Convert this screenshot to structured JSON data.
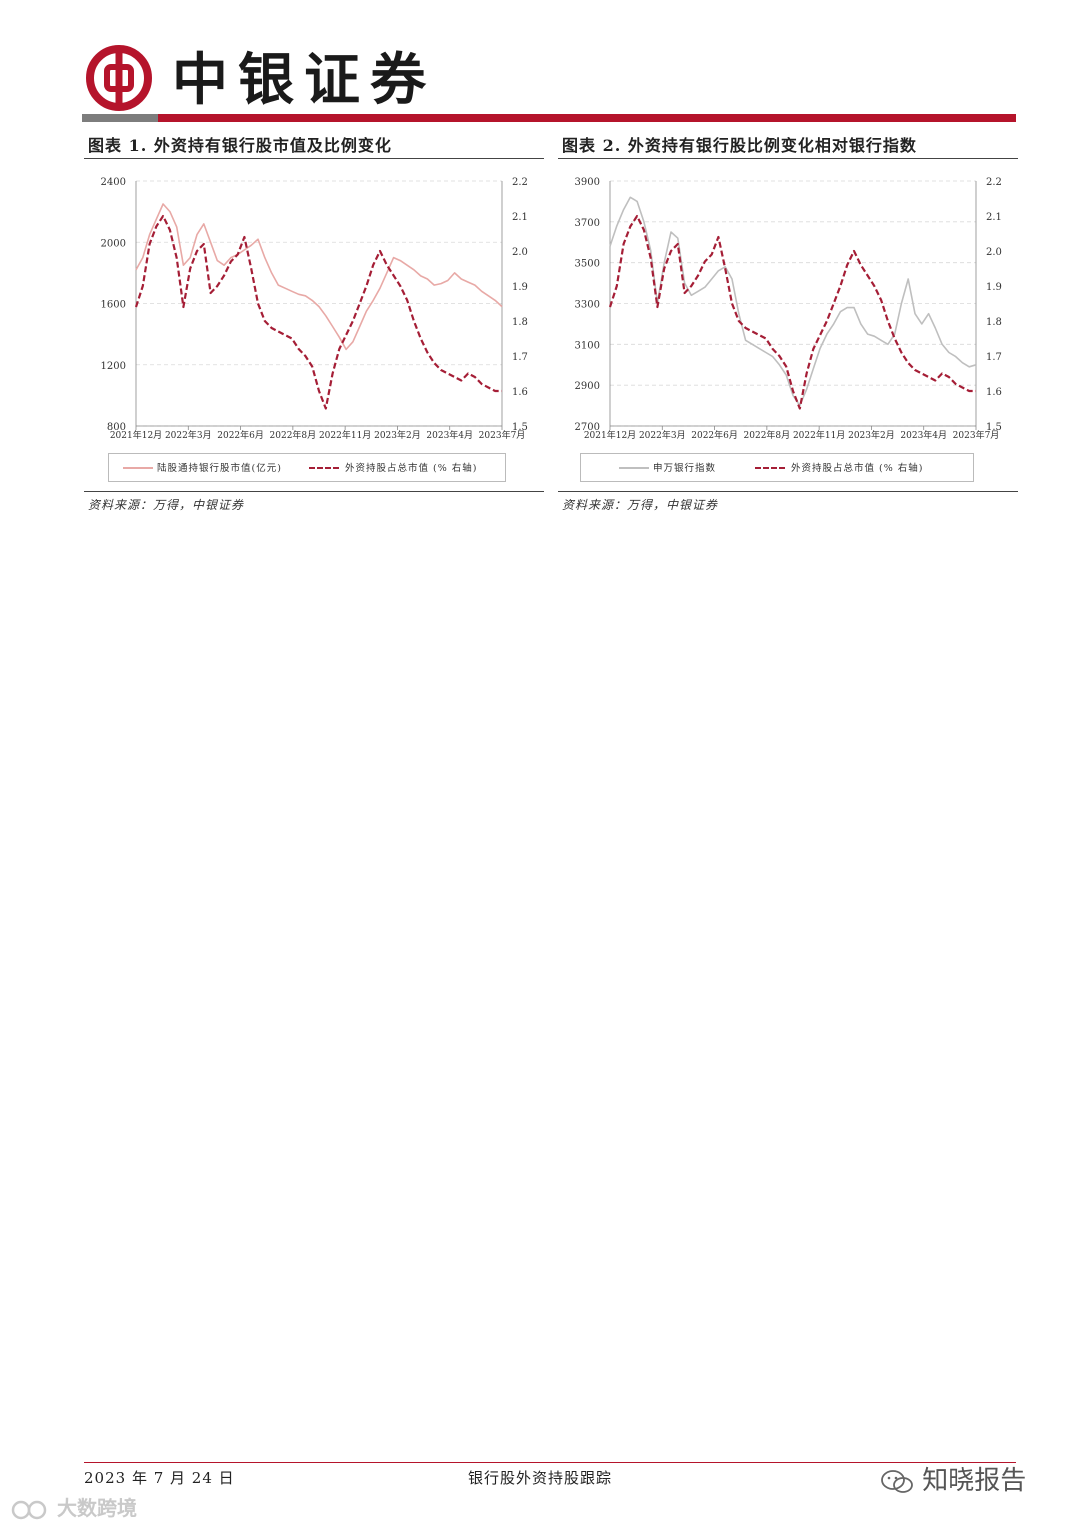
{
  "header": {
    "brand": "中银证券",
    "colors": {
      "brand_red": "#b5142b",
      "gray_bar": "#7d7d7d"
    }
  },
  "charts": {
    "left": {
      "title": "图表 1. 外资持有银行股市值及比例变化",
      "source": "资料来源：万得，中银证券",
      "legend": [
        "陆股通持银行股市值(亿元)",
        "外资持股占总市值    (% 右轴)"
      ]
    },
    "right": {
      "title": "图表 2. 外资持有银行股比例变化相对银行指数",
      "source": "资料来源：万得，中银证券",
      "legend": [
        "申万银行指数",
        "外资持股占总市值    (% 右轴)"
      ]
    }
  },
  "chart_data": [
    {
      "type": "line",
      "title": "外资持有银行股市值及比例变化",
      "x_ticks": [
        "2021年12月",
        "2022年3月",
        "2022年6月",
        "2022年8月",
        "2022年11月",
        "2023年2月",
        "2023年4月",
        "2023年7月"
      ],
      "y_left": {
        "ylim": [
          800,
          2400
        ],
        "ticks": [
          800,
          1200,
          1600,
          2000,
          2400
        ]
      },
      "y_right": {
        "ylim": [
          1.5,
          2.2
        ],
        "ticks": [
          1.5,
          1.6,
          1.7,
          1.8,
          1.9,
          2.0,
          2.1,
          2.2
        ]
      },
      "series": [
        {
          "name": "陆股通持银行股市值(亿元)",
          "axis": "left",
          "color": "#e8a9a6",
          "values": [
            1820,
            1900,
            2050,
            2150,
            2250,
            2200,
            2100,
            1850,
            1900,
            2050,
            2120,
            2000,
            1880,
            1850,
            1900,
            1920,
            1950,
            1980,
            2020,
            1900,
            1800,
            1720,
            1700,
            1680,
            1660,
            1650,
            1620,
            1580,
            1520,
            1450,
            1380,
            1300,
            1350,
            1450,
            1550,
            1620,
            1700,
            1800,
            1900,
            1880,
            1850,
            1820,
            1780,
            1760,
            1720,
            1730,
            1750,
            1800,
            1760,
            1740,
            1720,
            1680,
            1650,
            1620,
            1580
          ]
        },
        {
          "name": "外资持股占总市值",
          "axis": "right",
          "color": "#a51e36",
          "values": [
            1.84,
            1.9,
            2.02,
            2.07,
            2.1,
            2.06,
            1.98,
            1.84,
            1.95,
            2.0,
            2.02,
            1.88,
            1.9,
            1.93,
            1.97,
            1.99,
            2.04,
            1.95,
            1.85,
            1.8,
            1.78,
            1.77,
            1.76,
            1.75,
            1.72,
            1.7,
            1.67,
            1.6,
            1.55,
            1.65,
            1.72,
            1.76,
            1.8,
            1.85,
            1.9,
            1.96,
            2.0,
            1.96,
            1.93,
            1.9,
            1.86,
            1.8,
            1.75,
            1.71,
            1.68,
            1.66,
            1.65,
            1.64,
            1.63,
            1.65,
            1.64,
            1.62,
            1.61,
            1.6,
            1.6
          ]
        }
      ],
      "grid": true,
      "legend_placement": "bottom"
    },
    {
      "type": "line",
      "title": "外资持有银行股比例变化相对银行指数",
      "x_ticks": [
        "2021年12月",
        "2022年3月",
        "2022年6月",
        "2022年8月",
        "2022年11月",
        "2023年2月",
        "2023年4月",
        "2023年7月"
      ],
      "y_left": {
        "ylim": [
          2700,
          3900
        ],
        "ticks": [
          2700,
          2900,
          3100,
          3300,
          3500,
          3700,
          3900
        ]
      },
      "y_right": {
        "ylim": [
          1.5,
          2.2
        ],
        "ticks": [
          1.5,
          1.6,
          1.7,
          1.8,
          1.9,
          2.0,
          2.1,
          2.2
        ]
      },
      "series": [
        {
          "name": "申万银行指数",
          "axis": "left",
          "color": "#bfbfbf",
          "values": [
            3580,
            3680,
            3760,
            3820,
            3800,
            3700,
            3560,
            3300,
            3500,
            3650,
            3620,
            3400,
            3340,
            3360,
            3380,
            3420,
            3460,
            3480,
            3420,
            3250,
            3120,
            3100,
            3080,
            3060,
            3040,
            3000,
            2950,
            2850,
            2800,
            2880,
            2980,
            3080,
            3150,
            3200,
            3260,
            3280,
            3280,
            3200,
            3150,
            3140,
            3120,
            3100,
            3150,
            3300,
            3420,
            3250,
            3200,
            3250,
            3180,
            3100,
            3060,
            3040,
            3010,
            2990,
            3000
          ]
        },
        {
          "name": "外资持股占总市值",
          "axis": "right",
          "color": "#a51e36",
          "values": [
            1.84,
            1.9,
            2.02,
            2.07,
            2.1,
            2.06,
            1.98,
            1.84,
            1.95,
            2.0,
            2.02,
            1.88,
            1.9,
            1.93,
            1.97,
            1.99,
            2.04,
            1.95,
            1.85,
            1.8,
            1.78,
            1.77,
            1.76,
            1.75,
            1.72,
            1.7,
            1.67,
            1.6,
            1.55,
            1.65,
            1.72,
            1.76,
            1.8,
            1.85,
            1.9,
            1.96,
            2.0,
            1.96,
            1.93,
            1.9,
            1.86,
            1.8,
            1.75,
            1.71,
            1.68,
            1.66,
            1.65,
            1.64,
            1.63,
            1.65,
            1.64,
            1.62,
            1.61,
            1.6,
            1.6
          ]
        }
      ],
      "grid": true,
      "legend_placement": "bottom"
    }
  ],
  "footer": {
    "date": "2023 年 7 月 24 日",
    "title": "银行股外资持股跟踪"
  },
  "watermarks": {
    "right": "知晓报告",
    "left": "大数跨境"
  }
}
